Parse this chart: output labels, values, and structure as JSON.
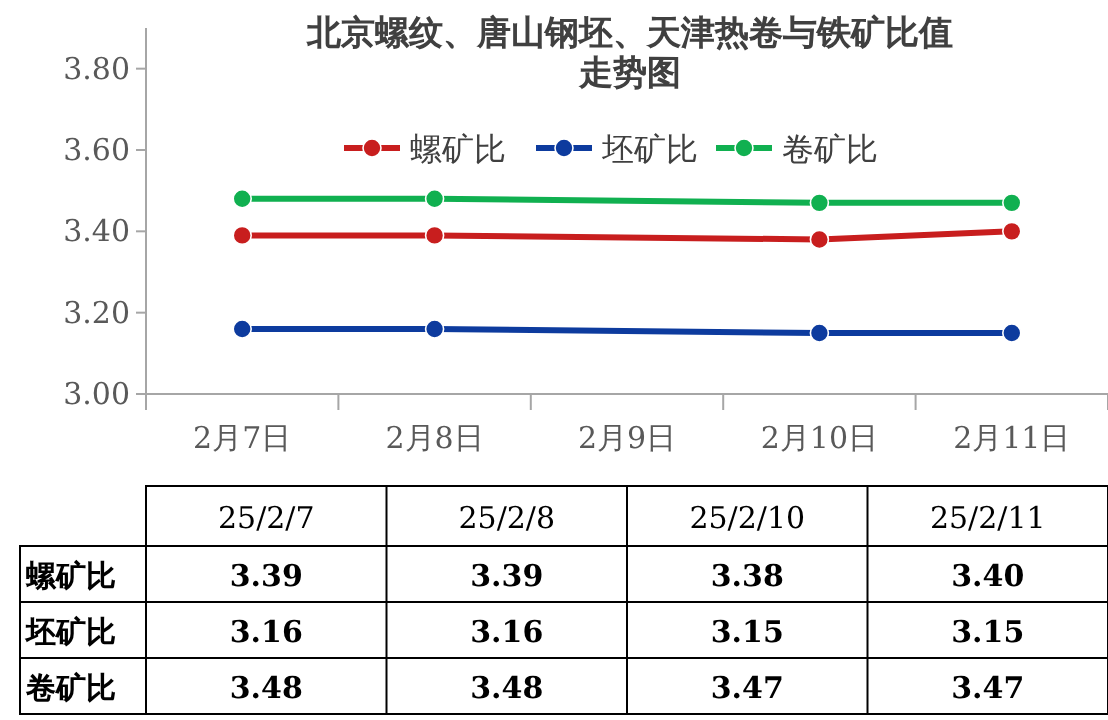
{
  "chart_data": {
    "type": "line",
    "title": "北京螺纹、唐山钢坯、天津热卷与铁矿比值走势图",
    "categories": [
      "2月7日",
      "2月8日",
      "2月9日",
      "2月10日",
      "2月11日"
    ],
    "series": [
      {
        "name": "螺矿比",
        "color": "#c81e1e",
        "values": [
          3.39,
          3.39,
          null,
          3.38,
          3.4
        ],
        "value_labels": [
          "3.39",
          "3.39",
          null,
          "3.38",
          "3.40"
        ]
      },
      {
        "name": "坯矿比",
        "color": "#0d3b9e",
        "values": [
          3.16,
          3.16,
          null,
          3.15,
          3.15
        ],
        "value_labels": [
          "3.16",
          "3.16",
          null,
          "3.15",
          "3.15"
        ]
      },
      {
        "name": "卷矿比",
        "color": "#10b050",
        "values": [
          3.48,
          3.48,
          null,
          3.47,
          3.47
        ],
        "value_labels": [
          "3.48",
          "3.48",
          null,
          "3.47",
          "3.47"
        ]
      }
    ],
    "ylim": [
      3.0,
      3.9
    ],
    "yticks": [
      {
        "value": 3.0,
        "label": "3.00"
      },
      {
        "value": 3.2,
        "label": "3.20"
      },
      {
        "value": 3.4,
        "label": "3.40"
      },
      {
        "value": 3.6,
        "label": "3.60"
      },
      {
        "value": 3.8,
        "label": "3.80"
      }
    ],
    "grid": false,
    "legend": "top",
    "marker": "circle",
    "line_style": "solid",
    "annotations": [
      "25/2/7",
      "25/2/8",
      "25/2/10",
      "25/2/11"
    ]
  }
}
